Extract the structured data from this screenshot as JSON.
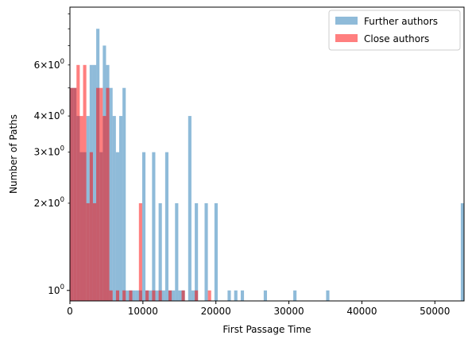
{
  "chart_data": {
    "type": "bar",
    "xlabel": "First Passage Time",
    "ylabel": "Number of Paths",
    "xlim": [
      0,
      54000
    ],
    "ylim": [
      0.92,
      9.5
    ],
    "yscale": "log",
    "grid": false,
    "legend_position": "top-right",
    "bin_width": 450,
    "x_ticks": [
      {
        "value": 0,
        "label": "0"
      },
      {
        "value": 10000,
        "label": "10000"
      },
      {
        "value": 20000,
        "label": "20000"
      },
      {
        "value": 30000,
        "label": "30000"
      },
      {
        "value": 40000,
        "label": "40000"
      },
      {
        "value": 50000,
        "label": "50000"
      }
    ],
    "y_major_ticks": [
      {
        "value": 1,
        "base": "10",
        "exp": "0"
      }
    ],
    "y_minor_ticks": [
      {
        "value": 2,
        "coef": "2",
        "base": "10",
        "exp": "0"
      },
      {
        "value": 3,
        "coef": "3",
        "base": "10",
        "exp": "0"
      },
      {
        "value": 4,
        "coef": "4",
        "base": "10",
        "exp": "0"
      },
      {
        "value": 5,
        "coef": "",
        "base": "",
        "exp": ""
      },
      {
        "value": 6,
        "coef": "6",
        "base": "10",
        "exp": "0"
      },
      {
        "value": 7,
        "coef": "",
        "base": "",
        "exp": ""
      },
      {
        "value": 8,
        "coef": "",
        "base": "",
        "exp": ""
      },
      {
        "value": 9,
        "coef": "",
        "base": "",
        "exp": ""
      }
    ],
    "series": [
      {
        "name": "Further authors",
        "color": "#1f77b4",
        "opacity": 0.5,
        "bins": [
          [
            0,
            5
          ],
          [
            450,
            5
          ],
          [
            900,
            4
          ],
          [
            1350,
            3
          ],
          [
            1800,
            3
          ],
          [
            2250,
            4
          ],
          [
            2700,
            6
          ],
          [
            3150,
            6
          ],
          [
            3600,
            8
          ],
          [
            4050,
            3
          ],
          [
            4500,
            7
          ],
          [
            4950,
            6
          ],
          [
            5400,
            5
          ],
          [
            5850,
            4
          ],
          [
            6300,
            3
          ],
          [
            6750,
            4
          ],
          [
            7200,
            5
          ],
          [
            7650,
            1
          ],
          [
            8100,
            1
          ],
          [
            8550,
            1
          ],
          [
            9000,
            1
          ],
          [
            9450,
            1
          ],
          [
            9900,
            3
          ],
          [
            10350,
            1
          ],
          [
            10800,
            1
          ],
          [
            11250,
            3
          ],
          [
            11700,
            1
          ],
          [
            12150,
            2
          ],
          [
            12600,
            1
          ],
          [
            13050,
            3
          ],
          [
            13500,
            1
          ],
          [
            13950,
            1
          ],
          [
            14400,
            2
          ],
          [
            14850,
            1
          ],
          [
            15300,
            1
          ],
          [
            16200,
            4
          ],
          [
            16650,
            1
          ],
          [
            17100,
            2
          ],
          [
            18450,
            2
          ],
          [
            19800,
            2
          ],
          [
            21600,
            1
          ],
          [
            22500,
            1
          ],
          [
            23400,
            1
          ],
          [
            26550,
            1
          ],
          [
            30600,
            1
          ],
          [
            35100,
            1
          ],
          [
            53550,
            2
          ]
        ]
      },
      {
        "name": "Close authors",
        "color": "#ff0000",
        "opacity": 0.5,
        "bins": [
          [
            0,
            5
          ],
          [
            450,
            5
          ],
          [
            900,
            6
          ],
          [
            1350,
            4
          ],
          [
            1800,
            6
          ],
          [
            2250,
            2
          ],
          [
            2700,
            3
          ],
          [
            3150,
            2
          ],
          [
            3600,
            5
          ],
          [
            4050,
            5
          ],
          [
            4500,
            4
          ],
          [
            4950,
            5
          ],
          [
            5400,
            1
          ],
          [
            6300,
            1
          ],
          [
            7200,
            1
          ],
          [
            8100,
            1
          ],
          [
            9450,
            2
          ],
          [
            10350,
            1
          ],
          [
            11250,
            1
          ],
          [
            12150,
            1
          ],
          [
            13500,
            1
          ],
          [
            15300,
            1
          ],
          [
            17100,
            1
          ],
          [
            18900,
            1
          ]
        ]
      }
    ]
  }
}
